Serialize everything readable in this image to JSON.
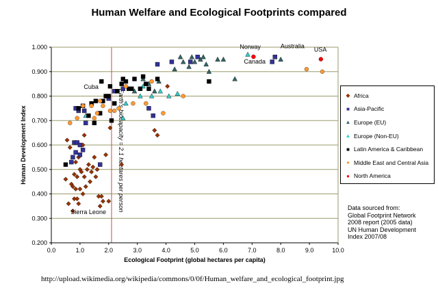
{
  "page": {
    "url_caption": "http://upload.wikimedia.org/wikipedia/commons/0/0f/Human_welfare_and_ecological_footprint.jpg",
    "source_note": [
      "Data sourced from:",
      "Global Footprint Network",
      "2008 report (2005 data)",
      "UN Human Development",
      "Index 2007/08"
    ]
  },
  "chart_data": {
    "type": "scatter",
    "title": "Human Welfare and Ecological Footprints compared",
    "xlabel": "Ecological Footprint (global hectares per capita)",
    "ylabel": "Human Development Index",
    "xlim": [
      0,
      10
    ],
    "ylim": [
      0.2,
      1.0
    ],
    "x_ticks": [
      "0.0",
      "1.0",
      "2.0",
      "3.0",
      "4.0",
      "5.0",
      "6.0",
      "7.0",
      "8.0",
      "9.0",
      "10.0"
    ],
    "y_ticks": [
      "0.200",
      "0.300",
      "0.400",
      "0.500",
      "0.600",
      "0.700",
      "0.800",
      "0.900",
      "1.000"
    ],
    "grid": "horizontal",
    "legend_position": "right",
    "reference_line": {
      "x": 2.1,
      "label": "Earth's biocapacity = 2.1 hectares per person",
      "color": "#c0504d"
    },
    "annotations": [
      {
        "text": "Norway",
        "x": 7.05,
        "y": 0.968
      },
      {
        "text": "Australia",
        "x": 7.85,
        "y": 0.962
      },
      {
        "text": "USA",
        "x": 9.4,
        "y": 0.951
      },
      {
        "text": "Canada",
        "x": 7.1,
        "y": 0.961
      },
      {
        "text": "Cuba",
        "x": 1.8,
        "y": 0.838
      },
      {
        "text": "Sierra Leone",
        "x": 0.75,
        "y": 0.329
      }
    ],
    "series": [
      {
        "name": "Africa",
        "color": "#993300",
        "marker": "diamond",
        "points": [
          [
            0.5,
            0.46
          ],
          [
            0.55,
            0.62
          ],
          [
            0.6,
            0.36
          ],
          [
            0.65,
            0.59
          ],
          [
            0.7,
            0.44
          ],
          [
            0.7,
            0.53
          ],
          [
            0.75,
            0.43
          ],
          [
            0.75,
            0.33
          ],
          [
            0.8,
            0.38
          ],
          [
            0.8,
            0.48
          ],
          [
            0.85,
            0.42
          ],
          [
            0.85,
            0.53
          ],
          [
            0.9,
            0.38
          ],
          [
            0.9,
            0.47
          ],
          [
            0.95,
            0.36
          ],
          [
            0.95,
            0.55
          ],
          [
            1.0,
            0.42
          ],
          [
            1.0,
            0.5
          ],
          [
            1.05,
            0.49
          ],
          [
            1.1,
            0.4
          ],
          [
            1.1,
            0.6
          ],
          [
            1.15,
            0.47
          ],
          [
            1.15,
            0.64
          ],
          [
            1.2,
            0.43
          ],
          [
            1.25,
            0.5
          ],
          [
            1.3,
            0.52
          ],
          [
            1.35,
            0.45
          ],
          [
            1.4,
            0.49
          ],
          [
            1.45,
            0.51
          ],
          [
            1.5,
            0.55
          ],
          [
            1.55,
            0.47
          ],
          [
            1.6,
            0.5
          ],
          [
            1.65,
            0.39
          ],
          [
            1.7,
            0.35
          ],
          [
            1.75,
            0.39
          ],
          [
            1.8,
            0.37
          ],
          [
            1.9,
            0.56
          ],
          [
            2.0,
            0.37
          ],
          [
            2.05,
            0.67
          ],
          [
            2.45,
            0.52
          ],
          [
            3.6,
            0.66
          ],
          [
            3.7,
            0.64
          ],
          [
            4.05,
            0.84
          ]
        ]
      },
      {
        "name": "Asia-Pacific",
        "color": "#333399",
        "marker": "square",
        "points": [
          [
            0.7,
            0.53
          ],
          [
            0.75,
            0.55
          ],
          [
            0.8,
            0.61
          ],
          [
            0.85,
            0.57
          ],
          [
            0.85,
            0.75
          ],
          [
            0.9,
            0.61
          ],
          [
            0.95,
            0.74
          ],
          [
            1.0,
            0.56
          ],
          [
            1.0,
            0.6
          ],
          [
            1.1,
            0.58
          ],
          [
            1.15,
            0.74
          ],
          [
            1.2,
            0.69
          ],
          [
            1.7,
            0.52
          ],
          [
            2.0,
            0.79
          ],
          [
            2.2,
            0.82
          ],
          [
            2.5,
            0.83
          ],
          [
            3.4,
            0.75
          ],
          [
            3.55,
            0.72
          ],
          [
            3.7,
            0.93
          ],
          [
            4.2,
            0.94
          ],
          [
            4.85,
            0.94
          ],
          [
            5.1,
            0.96
          ],
          [
            7.8,
            0.96
          ],
          [
            7.7,
            0.94
          ]
        ]
      },
      {
        "name": "Europe (EU)",
        "color": "#336666",
        "marker": "triangle",
        "points": [
          [
            2.9,
            0.82
          ],
          [
            3.2,
            0.87
          ],
          [
            3.4,
            0.85
          ],
          [
            3.6,
            0.82
          ],
          [
            3.75,
            0.86
          ],
          [
            4.3,
            0.91
          ],
          [
            4.5,
            0.96
          ],
          [
            4.6,
            0.94
          ],
          [
            4.8,
            0.92
          ],
          [
            4.9,
            0.96
          ],
          [
            5.0,
            0.94
          ],
          [
            5.2,
            0.95
          ],
          [
            5.4,
            0.93
          ],
          [
            5.5,
            0.9
          ],
          [
            5.8,
            0.95
          ],
          [
            6.0,
            0.95
          ],
          [
            6.4,
            0.87
          ],
          [
            8.0,
            0.95
          ],
          [
            5.3,
            0.96
          ]
        ]
      },
      {
        "name": "Europe (Non-EU)",
        "color": "#33cccc",
        "marker": "triangle",
        "points": [
          [
            1.2,
            0.72
          ],
          [
            2.5,
            0.71
          ],
          [
            2.6,
            0.77
          ],
          [
            3.1,
            0.8
          ],
          [
            3.2,
            0.84
          ],
          [
            3.5,
            0.8
          ],
          [
            3.8,
            0.82
          ],
          [
            4.1,
            0.8
          ],
          [
            4.4,
            0.81
          ],
          [
            6.85,
            0.97
          ]
        ]
      },
      {
        "name": "Latin America & Caribbean",
        "color": "#000000",
        "marker": "square",
        "points": [
          [
            0.5,
            0.52
          ],
          [
            0.95,
            0.75
          ],
          [
            1.1,
            0.76
          ],
          [
            1.3,
            0.72
          ],
          [
            1.4,
            0.77
          ],
          [
            1.5,
            0.69
          ],
          [
            1.55,
            0.78
          ],
          [
            1.7,
            0.73
          ],
          [
            1.75,
            0.86
          ],
          [
            1.8,
            0.78
          ],
          [
            1.9,
            0.8
          ],
          [
            2.0,
            0.8
          ],
          [
            2.05,
            0.84
          ],
          [
            2.1,
            0.7
          ],
          [
            2.2,
            0.77
          ],
          [
            2.3,
            0.82
          ],
          [
            2.45,
            0.85
          ],
          [
            2.5,
            0.87
          ],
          [
            2.6,
            0.86
          ],
          [
            2.7,
            0.83
          ],
          [
            2.8,
            0.83
          ],
          [
            2.9,
            0.87
          ],
          [
            3.1,
            0.83
          ],
          [
            3.2,
            0.88
          ],
          [
            3.3,
            0.85
          ],
          [
            3.4,
            0.83
          ],
          [
            3.7,
            0.87
          ],
          [
            5.5,
            0.86
          ]
        ]
      },
      {
        "name": "Middle East and Central Asia",
        "color": "#ff9933",
        "marker": "circle",
        "points": [
          [
            0.65,
            0.69
          ],
          [
            0.9,
            0.71
          ],
          [
            1.1,
            0.76
          ],
          [
            1.4,
            0.76
          ],
          [
            1.5,
            0.71
          ],
          [
            1.6,
            0.73
          ],
          [
            1.7,
            0.78
          ],
          [
            1.8,
            0.76
          ],
          [
            2.05,
            0.74
          ],
          [
            2.2,
            0.74
          ],
          [
            2.35,
            0.75
          ],
          [
            2.6,
            0.84
          ],
          [
            2.85,
            0.77
          ],
          [
            3.3,
            0.77
          ],
          [
            3.5,
            0.86
          ],
          [
            3.9,
            0.73
          ],
          [
            4.6,
            0.8
          ],
          [
            8.9,
            0.91
          ],
          [
            9.45,
            0.9
          ]
        ]
      },
      {
        "name": "North America",
        "color": "#ff0000",
        "marker": "circle",
        "points": [
          [
            7.05,
            0.961
          ],
          [
            9.4,
            0.951
          ]
        ]
      }
    ]
  }
}
